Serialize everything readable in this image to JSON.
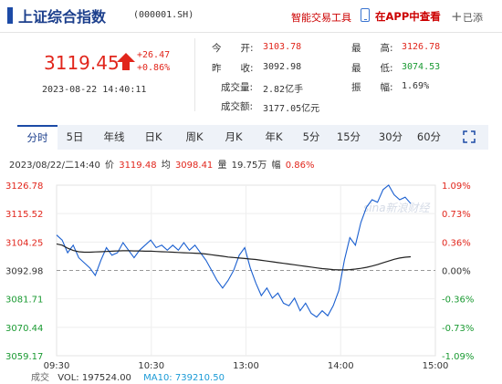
{
  "header": {
    "title": "上证综合指数",
    "code": "(000001.SH)",
    "smart_trade": "智能交易工具",
    "app_view": "在APP中查看",
    "add_icon": "+",
    "add_label": "已添"
  },
  "quote": {
    "price": "3119.45",
    "change": "+26.47",
    "change_pct": "+0.86%",
    "datetime": "2023-08-22  14:40:11",
    "open_label": "今　　开:",
    "open": "3103.78",
    "high_label": "最　　高:",
    "high": "3126.78",
    "prev_close_label": "昨　　收:",
    "prev_close": "3092.98",
    "low_label": "最　　低:",
    "low": "3074.53",
    "volume_label": "成交量:",
    "volume": "2.82亿手",
    "amplitude_label": "振　　幅:",
    "amplitude": "1.69%",
    "turnover_label": "成交额:",
    "turnover": "3177.05亿元"
  },
  "tabs": [
    "分时",
    "5日",
    "年线",
    "日K",
    "周K",
    "月K",
    "年K",
    "5分",
    "15分",
    "30分",
    "60分"
  ],
  "active_tab": "分时",
  "info_line": {
    "datetime": "2023/08/22/二14:40",
    "price_label": "价",
    "price": "3119.48",
    "avg_label": "均",
    "avg": "3098.41",
    "vol_label": "量",
    "vol": "19.75万",
    "pct_label": "幅",
    "pct": "0.86%"
  },
  "chart_data": {
    "type": "line",
    "x_ticks": [
      "09:30",
      "10:30",
      "13:00",
      "14:00",
      "15:00"
    ],
    "y_left_ticks": [
      "3126.78",
      "3115.52",
      "3104.25",
      "3092.98",
      "3081.71",
      "3070.44",
      "3059.17"
    ],
    "y_right_ticks": [
      "1.09%",
      "0.73%",
      "0.36%",
      "0.00%",
      "-0.36%",
      "-0.73%",
      "-1.09%"
    ],
    "ylim": [
      3059.17,
      3126.78
    ],
    "baseline": 3092.98,
    "series": [
      {
        "values": [
          3107,
          3105,
          3100,
          3103,
          3098,
          3096,
          3094,
          3091,
          3097,
          3102,
          3099,
          3100,
          3104,
          3101,
          3098,
          3101,
          3103,
          3105,
          3102,
          3103,
          3101,
          3103,
          3101,
          3104,
          3101,
          3103,
          3100,
          3097,
          3093,
          3089,
          3086,
          3089,
          3093,
          3099,
          3102,
          3094,
          3088,
          3083,
          3086,
          3082,
          3084,
          3080,
          3079,
          3082,
          3077,
          3080,
          3076,
          3074.5,
          3077,
          3075,
          3079,
          3085,
          3097,
          3106,
          3103,
          3112,
          3118,
          3121,
          3120,
          3125,
          3126.78,
          3123,
          3121,
          3122,
          3119.48
        ]
      },
      {
        "values": [
          3103.5,
          3103,
          3101.8,
          3100.9,
          3100.4,
          3100.2,
          3100.2,
          3100.3,
          3100.4,
          3100.5,
          3100.6,
          3100.7,
          3100.8,
          3100.8,
          3100.7,
          3100.7,
          3100.6,
          3100.6,
          3100.5,
          3100.4,
          3100.3,
          3100.2,
          3100.1,
          3100,
          3099.9,
          3099.8,
          3099.7,
          3099.5,
          3099.2,
          3098.9,
          3098.6,
          3098.3,
          3098.1,
          3097.9,
          3097.7,
          3097.5,
          3097.3,
          3097,
          3096.7,
          3096.4,
          3096.1,
          3095.8,
          3095.5,
          3095.2,
          3094.9,
          3094.6,
          3094.3,
          3094,
          3093.7,
          3093.5,
          3093.3,
          3093.2,
          3093.2,
          3093.3,
          3093.5,
          3093.8,
          3094.2,
          3094.7,
          3095.3,
          3096,
          3096.7,
          3097.4,
          3097.9,
          3098.2,
          3098.41
        ]
      }
    ]
  },
  "legend": {
    "vol_label": "成交",
    "vol_value": "VOL: 197524.00",
    "ma10_value": "MA10: 739210.50"
  },
  "colors": {
    "price_line": "#1a5fd0",
    "avg_line": "#222222",
    "up": "#e1251b",
    "down": "#1a9a32",
    "baseline": "#999999"
  },
  "watermark": "sina新浪财经"
}
